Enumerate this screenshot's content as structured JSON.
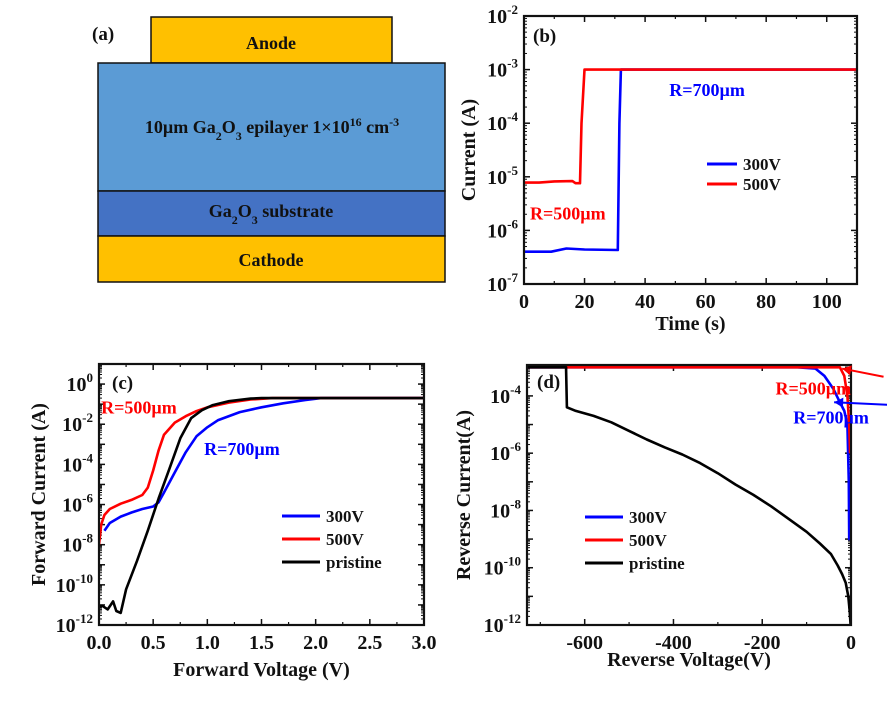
{
  "colors": {
    "anode": "#FFC000",
    "epilayer": "#5B9BD5",
    "substrate": "#4472C4",
    "cathode": "#FFC000",
    "series_300V": "#0000FF",
    "series_500V": "#FF0000",
    "series_pristine": "#000000"
  },
  "diagram": {
    "panel_label": "(a)",
    "layers": [
      {
        "id": "anode",
        "label": "Anode"
      },
      {
        "id": "epilayer",
        "label_parts": [
          "10µm Ga",
          "2",
          "O",
          "3",
          " epilayer 1×10",
          "16",
          " cm",
          "-3"
        ]
      },
      {
        "id": "substrate",
        "label_parts": [
          "Ga",
          "2",
          "O",
          "3",
          " substrate"
        ]
      },
      {
        "id": "cathode",
        "label": "Cathode"
      }
    ]
  },
  "chart_data": [
    {
      "id": "b",
      "type": "line",
      "panel_label": "(b)",
      "xlabel": "Time (s)",
      "ylabel": "Current (A)",
      "xscale": "linear",
      "yscale": "log",
      "xlim": [
        0,
        110
      ],
      "ylim": [
        1e-07,
        0.01
      ],
      "xticks": [
        0,
        20,
        40,
        60,
        80,
        100
      ],
      "xtick_labels": [
        "0",
        "20",
        "40",
        "60",
        "80",
        "100"
      ],
      "yticks_exp": [
        -7,
        -6,
        -5,
        -4,
        -3,
        -2
      ],
      "grid": false,
      "legend": {
        "position": "center-right",
        "entries": [
          "300V",
          "500V"
        ]
      },
      "annotations": [
        {
          "text": "R=700µm",
          "color": "#0000FF",
          "x": 48,
          "y": 0.00032
        },
        {
          "text": "R=500µm",
          "color": "#FF0000",
          "x": 2,
          "y": 1.6e-06
        }
      ],
      "series": [
        {
          "name": "300V",
          "color": "#0000FF",
          "x": [
            0,
            9,
            14,
            20,
            31,
            31.5,
            32,
            110
          ],
          "y": [
            4e-07,
            4e-07,
            4.6e-07,
            4.4e-07,
            4.3e-07,
            0.0001,
            0.001,
            0.001
          ]
        },
        {
          "name": "500V",
          "color": "#FF0000",
          "x": [
            0,
            5,
            10,
            16,
            17,
            18.5,
            19,
            20,
            31,
            110
          ],
          "y": [
            7.8e-06,
            7.8e-06,
            8.2e-06,
            8.3e-06,
            7.6e-06,
            7.6e-06,
            0.0001,
            0.001,
            0.001,
            0.001
          ]
        }
      ]
    },
    {
      "id": "c",
      "type": "line",
      "panel_label": "(c)",
      "xlabel": "Forward Voltage (V)",
      "ylabel": "Forward Current (A)",
      "xscale": "linear",
      "yscale": "log",
      "xlim": [
        0,
        3.0
      ],
      "ylim": [
        1e-12,
        10
      ],
      "xticks": [
        0,
        0.5,
        1.0,
        1.5,
        2.0,
        2.5,
        3.0
      ],
      "xtick_labels": [
        "0.0",
        "0.5",
        "1.0",
        "1.5",
        "2.0",
        "2.5",
        "3.0"
      ],
      "yticks_exp": [
        -12,
        -10,
        -8,
        -6,
        -4,
        -2,
        0
      ],
      "grid": false,
      "legend": {
        "position": "center-right",
        "entries": [
          "300V",
          "500V",
          "pristine"
        ]
      },
      "annotations": [
        {
          "text": "R=500µm",
          "color": "#FF0000",
          "x": 0.02,
          "y": 0.035
        },
        {
          "text": "R=700µm",
          "color": "#0000FF",
          "x": 0.97,
          "y": 0.0003
        }
      ],
      "series": [
        {
          "name": "300V",
          "color": "#0000FF",
          "x": [
            0.05,
            0.1,
            0.2,
            0.3,
            0.4,
            0.5,
            0.55,
            0.6,
            0.7,
            0.8,
            0.9,
            1.0,
            1.1,
            1.3,
            1.5,
            1.7,
            1.9,
            2.05,
            3.0
          ],
          "y": [
            5e-08,
            1.2e-07,
            2.5e-07,
            4e-07,
            6e-07,
            8e-07,
            1.3e-06,
            4e-06,
            4e-05,
            0.0004,
            0.0025,
            0.007,
            0.016,
            0.04,
            0.07,
            0.11,
            0.16,
            0.2,
            0.2
          ]
        },
        {
          "name": "500V",
          "color": "#FF0000",
          "x": [
            0.0,
            0.02,
            0.05,
            0.1,
            0.2,
            0.3,
            0.4,
            0.45,
            0.5,
            0.55,
            0.6,
            0.7,
            0.8,
            0.9,
            1.0,
            1.2,
            1.4,
            1.6,
            3.0
          ],
          "y": [
            1e-08,
            1e-07,
            3e-07,
            6e-07,
            1.1e-06,
            1.7e-06,
            3e-06,
            7e-06,
            5e-05,
            0.0005,
            0.003,
            0.012,
            0.025,
            0.045,
            0.07,
            0.12,
            0.17,
            0.2,
            0.2
          ]
        },
        {
          "name": "pristine",
          "color": "#000000",
          "x": [
            0.0,
            0.03,
            0.08,
            0.13,
            0.16,
            0.2,
            0.25,
            0.35,
            0.45,
            0.55,
            0.65,
            0.75,
            0.85,
            0.95,
            1.05,
            1.2,
            1.4,
            1.5,
            3.0
          ],
          "y": [
            8e-12,
            9e-12,
            6e-12,
            1.5e-11,
            5e-12,
            4e-12,
            6e-11,
            1.5e-09,
            5e-08,
            2e-06,
            6e-05,
            0.002,
            0.02,
            0.05,
            0.09,
            0.14,
            0.19,
            0.2,
            0.2
          ]
        }
      ]
    },
    {
      "id": "d",
      "type": "line",
      "panel_label": "(d)",
      "xlabel": "Reverse Voltage(V)",
      "ylabel": "Reverse Current(A)",
      "xscale": "linear",
      "yscale": "log",
      "xlim": [
        -730,
        0
      ],
      "ylim": [
        1e-12,
        0.0012
      ],
      "xticks": [
        -600,
        -400,
        -200,
        0
      ],
      "xtick_labels": [
        "-600",
        "-400",
        "-200",
        "0"
      ],
      "yticks_exp": [
        -12,
        -10,
        -8,
        -6,
        -4
      ],
      "grid": false,
      "legend": {
        "position": "lower-left",
        "entries": [
          "300V",
          "500V",
          "pristine"
        ]
      },
      "annotations": [
        {
          "text": "R=500µm",
          "color": "#FF0000",
          "x": -170,
          "y": 0.00011,
          "arrow_to": [
            -20,
            0.0009
          ]
        },
        {
          "text": "R=700µm",
          "color": "#0000FF",
          "x": -130,
          "y": 1.1e-05,
          "arrow_to": [
            -38,
            6e-05
          ]
        }
      ],
      "series": [
        {
          "name": "300V",
          "color": "#0000FF",
          "x": [
            -730,
            -120,
            -80,
            -60,
            -40,
            -25,
            -15,
            -8,
            -5,
            -4,
            -3
          ],
          "y": [
            0.001,
            0.001,
            0.0009,
            0.0005,
            0.00018,
            6e-05,
            3e-05,
            1e-05,
            1e-07,
            1e-09,
            1e-09
          ]
        },
        {
          "name": "500V",
          "color": "#FF0000",
          "x": [
            -730,
            -40,
            -25,
            -15,
            -8,
            -4,
            -2
          ],
          "y": [
            0.001,
            0.001,
            0.001,
            0.0005,
            0.0001,
            1e-05,
            1e-06
          ]
        },
        {
          "name": "pristine",
          "color": "#000000",
          "x": [
            -730,
            -642,
            -642,
            -640,
            -620,
            -580,
            -540,
            -500,
            -460,
            -420,
            -380,
            -340,
            -300,
            -260,
            -220,
            -180,
            -140,
            -100,
            -70,
            -45,
            -30,
            -20,
            -12,
            -6,
            -3,
            -1
          ],
          "y": [
            0.001,
            0.001,
            0.0008,
            4e-05,
            3e-05,
            2e-05,
            1.2e-05,
            6e-06,
            3e-06,
            1.6e-06,
            9e-07,
            4.5e-07,
            2e-07,
            8e-08,
            3.5e-08,
            1.4e-08,
            5e-09,
            1.8e-09,
            7e-10,
            3e-10,
            1.2e-10,
            6e-11,
            3e-11,
            1e-11,
            3e-12,
            1e-12
          ]
        }
      ]
    }
  ]
}
